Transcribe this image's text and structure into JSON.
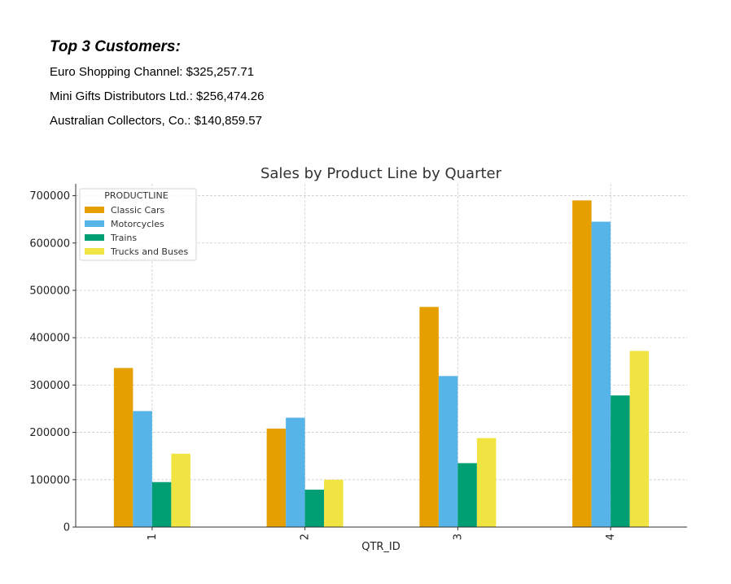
{
  "customers": {
    "heading": "Top 3 Customers:",
    "items": [
      "Euro Shopping Channel: $325,257.71",
      "Mini Gifts Distributors Ltd.: $256,474.26",
      "Australian Collectors, Co.: $140,859.57"
    ]
  },
  "chart_data": {
    "type": "bar",
    "title": "Sales by Product Line by Quarter",
    "xlabel": "QTR_ID",
    "ylabel": "",
    "categories": [
      "1",
      "2",
      "3",
      "4"
    ],
    "ylim": [
      0,
      725000
    ],
    "yticks": [
      0,
      100000,
      200000,
      300000,
      400000,
      500000,
      600000,
      700000
    ],
    "grid": true,
    "legend": {
      "title": "PRODUCTLINE",
      "placement": "top-left"
    },
    "series": [
      {
        "name": "Classic Cars",
        "color": "#E69F00",
        "values": [
          336000,
          208000,
          465000,
          690000
        ]
      },
      {
        "name": "Motorcycles",
        "color": "#56B4E9",
        "values": [
          245000,
          231000,
          319000,
          645000
        ]
      },
      {
        "name": "Trains",
        "color": "#009E73",
        "values": [
          95000,
          79000,
          135000,
          278000
        ]
      },
      {
        "name": "Trucks and Buses",
        "color": "#F0E442",
        "values": [
          155000,
          100000,
          188000,
          372000
        ]
      }
    ]
  }
}
